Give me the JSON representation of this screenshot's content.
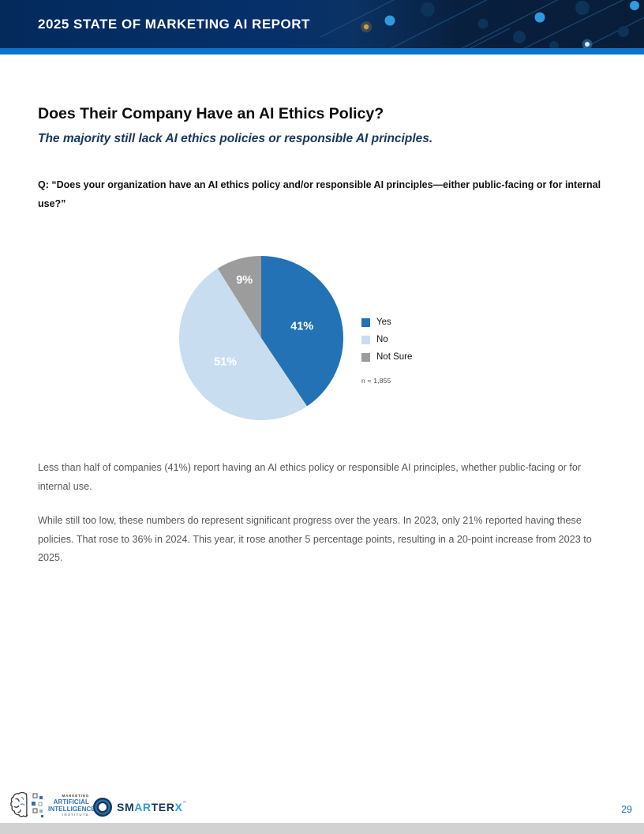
{
  "header": {
    "title": "2025 STATE OF MARKETING AI REPORT"
  },
  "content": {
    "title": "Does Their Company Have an AI Ethics Policy?",
    "subtitle": "The majority still lack AI ethics policies or responsible AI principles.",
    "question": "Q: “Does your organization have an AI ethics policy and/or responsible AI principles—either public-facing or for internal use?”",
    "paragraphs": [
      "Less than half of companies (41%) report having an AI ethics policy or responsible AI principles, whether public-facing or for internal use.",
      "While still too low, these numbers do represent significant progress over the years. In 2023, only 21% reported having these policies. That rose to 36% in 2024. This year, it rose another 5 percentage points, resulting in a 20-point increase from 2023 to 2025."
    ]
  },
  "chart_data": {
    "type": "pie",
    "title": "",
    "categories": [
      "Yes",
      "No",
      "Not Sure"
    ],
    "values": [
      41,
      51,
      9
    ],
    "labels": [
      "41%",
      "51%",
      "9%"
    ],
    "colors": [
      "#2272B5",
      "#C8DEF0",
      "#9C9C9C"
    ],
    "label_color": "#FFFFFF",
    "start_angle_deg": 0,
    "direction": "clockwise",
    "legend_position": "right",
    "sample_note": "n = 1,855"
  },
  "footer": {
    "maii_logo": {
      "lines": [
        "MARKETING",
        "ARTIFICIAL",
        "INTELLIGENCE",
        "INSTITUTE"
      ]
    },
    "smarterx_logo": {
      "segments": [
        {
          "text": "SM",
          "color": "#16375f"
        },
        {
          "text": "AR",
          "color": "#2e9bd8"
        },
        {
          "text": "TER",
          "color": "#16375f"
        },
        {
          "text": "X",
          "color": "#2e9bd8"
        }
      ],
      "trademark": "™"
    },
    "page_number": "29"
  },
  "colors": {
    "header_navy": "#042A5C",
    "stripe_blue": "#0D72CC",
    "subtitle_navy": "#17375E",
    "body_gray": "#565759",
    "page_number_blue": "#2473B5",
    "bottom_bar_gray": "#D2D2D2"
  }
}
